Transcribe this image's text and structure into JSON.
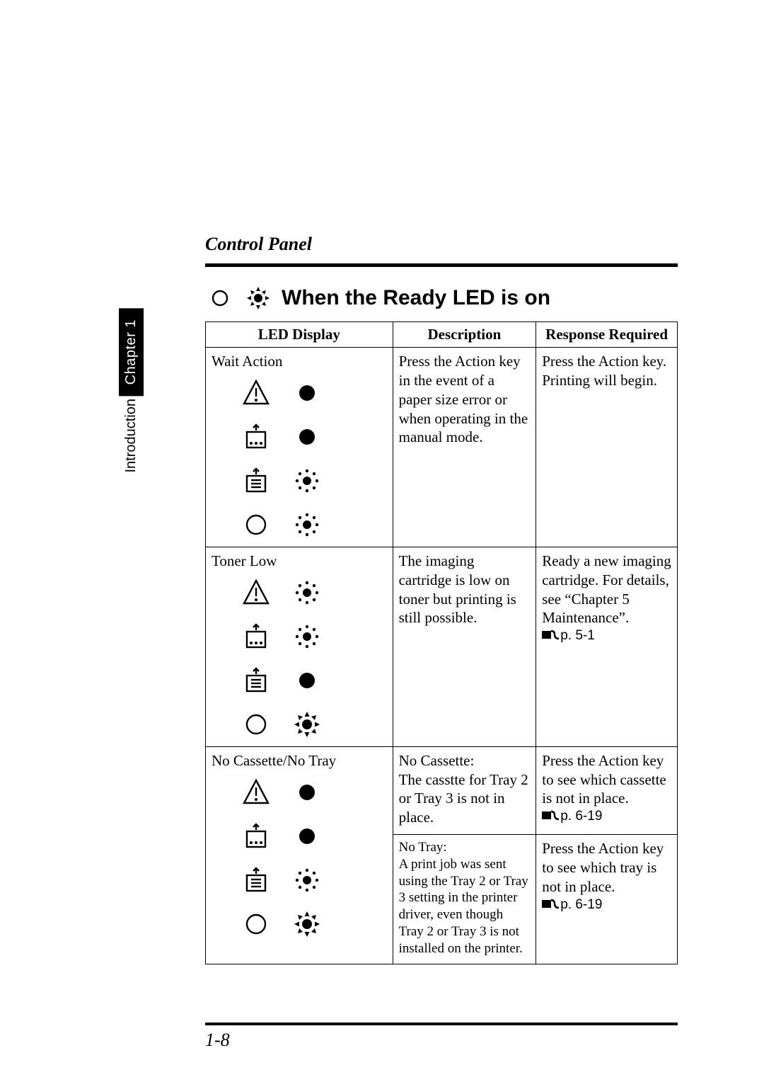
{
  "side_tab": {
    "chapter": "Chapter 1",
    "section": "Introduction"
  },
  "header": {
    "title": "Control Panel"
  },
  "section": {
    "title": "When the Ready LED is on"
  },
  "table": {
    "headers": {
      "led": "LED Display",
      "desc": "Description",
      "resp": "Response Required"
    },
    "rows": [
      {
        "name": "Wait Action",
        "leds": [
          {
            "icon": "warning",
            "state": "solid"
          },
          {
            "icon": "paper",
            "state": "solid"
          },
          {
            "icon": "tray",
            "state": "blink"
          },
          {
            "icon": "ready",
            "state": "blink"
          }
        ],
        "desc": "Press the Action key in the event of a paper size error or when operating in the manual mode.",
        "resp": "Press the Action key. Printing will begin."
      },
      {
        "name": "Toner Low",
        "leds": [
          {
            "icon": "warning",
            "state": "blink"
          },
          {
            "icon": "paper",
            "state": "blink"
          },
          {
            "icon": "tray",
            "state": "solid"
          },
          {
            "icon": "ready",
            "state": "on"
          }
        ],
        "desc": "The imaging cartridge is low on toner but printing is still possible.",
        "resp": "Ready a new imaging cartridge. For details, see “Chapter 5 Maintenance”.",
        "resp_ref": "p. 5-1"
      },
      {
        "name": "No Cassette/No Tray",
        "leds": [
          {
            "icon": "warning",
            "state": "solid"
          },
          {
            "icon": "paper",
            "state": "solid"
          },
          {
            "icon": "tray",
            "state": "blink"
          },
          {
            "icon": "ready",
            "state": "on"
          }
        ],
        "sub": [
          {
            "desc_title": "No Cassette:",
            "desc": "The casstte for Tray 2 or Tray 3 is not in place.",
            "resp": "Press the Action key to see which cassette is not in place.",
            "resp_ref": "p. 6-19"
          },
          {
            "desc_title": "No Tray:",
            "desc": "A print job was sent using the Tray 2 or Tray 3 setting in the printer driver, even though Tray 2 or Tray 3 is not installed on the printer.",
            "resp": "Press the Action key to see which tray is not in place.",
            "resp_ref": "p. 6-19"
          }
        ]
      }
    ]
  },
  "footer": {
    "page": "1-8"
  },
  "colors": {
    "text": "#000000",
    "bg": "#ffffff"
  },
  "fonts": {
    "serif": "Times New Roman",
    "sans": "Arial"
  }
}
